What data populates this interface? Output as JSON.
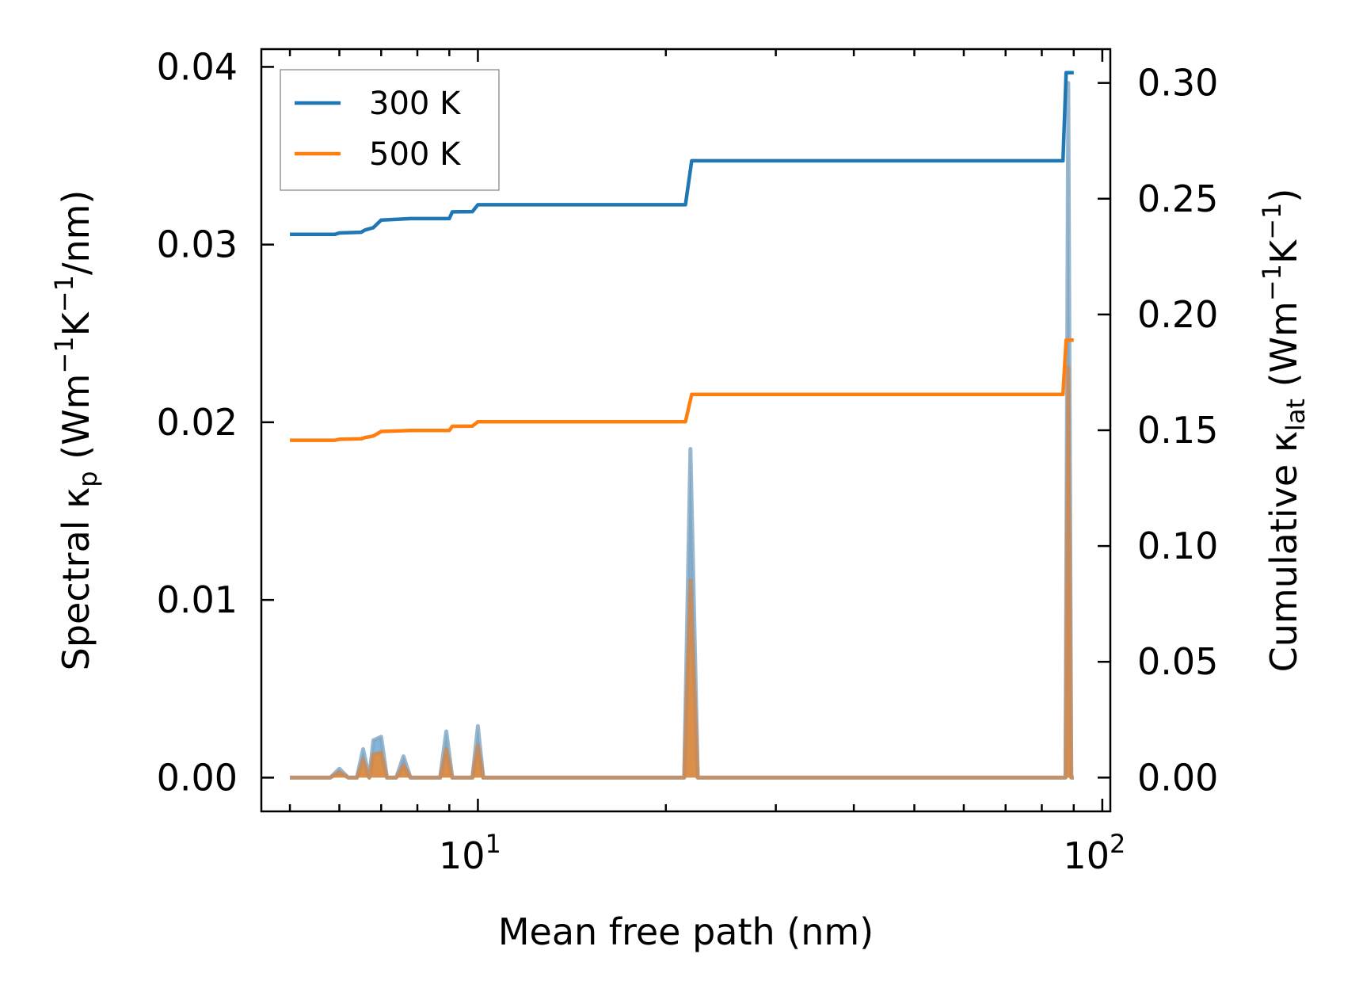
{
  "chart_data": {
    "type": "line",
    "xscale": "log",
    "xlim": [
      4.5,
      103
    ],
    "xlabel": "Mean free path (nm)",
    "ylabel_left_parts": [
      "Spectral κ",
      "p",
      " (Wm",
      "−1",
      "K",
      "−1",
      "/nm)"
    ],
    "ylabel_right_parts": [
      "Cumulative κ",
      "lat",
      " (Wm",
      "−1",
      "K",
      "−1",
      ")"
    ],
    "ylim_left": [
      -0.0019,
      0.041
    ],
    "ylim_right": [
      -0.0146,
      0.3146
    ],
    "xticks": [
      {
        "value": 10,
        "base": "10",
        "exp": "1"
      },
      {
        "value": 100,
        "base": "10",
        "exp": "2"
      }
    ],
    "yticks_left": [
      {
        "value": 0.0,
        "label": "0.00"
      },
      {
        "value": 0.01,
        "label": "0.01"
      },
      {
        "value": 0.02,
        "label": "0.02"
      },
      {
        "value": 0.03,
        "label": "0.03"
      },
      {
        "value": 0.04,
        "label": "0.04"
      }
    ],
    "yticks_right": [
      {
        "value": 0.0,
        "label": "0.00"
      },
      {
        "value": 0.05,
        "label": "0.05"
      },
      {
        "value": 0.1,
        "label": "0.10"
      },
      {
        "value": 0.15,
        "label": "0.15"
      },
      {
        "value": 0.2,
        "label": "0.20"
      },
      {
        "value": 0.25,
        "label": "0.25"
      },
      {
        "value": 0.3,
        "label": "0.30"
      }
    ],
    "legend_position": "top-left",
    "series": [
      {
        "name": "300 K",
        "color": "#1f77b4",
        "cumulative": [
          [
            5.0,
            0.2346
          ],
          [
            5.9,
            0.2346
          ],
          [
            6.0,
            0.2352
          ],
          [
            6.5,
            0.2355
          ],
          [
            6.6,
            0.2365
          ],
          [
            6.8,
            0.2375
          ],
          [
            7.0,
            0.2408
          ],
          [
            7.8,
            0.2414
          ],
          [
            9.0,
            0.2414
          ],
          [
            9.1,
            0.2443
          ],
          [
            9.8,
            0.2444
          ],
          [
            10.0,
            0.2474
          ],
          [
            21.5,
            0.2474
          ],
          [
            22.0,
            0.2664
          ],
          [
            86.5,
            0.2664
          ],
          [
            87.5,
            0.3044
          ],
          [
            90.0,
            0.3044
          ]
        ],
        "spectral": [
          [
            5.0,
            0.0
          ],
          [
            5.8,
            0.0
          ],
          [
            6.0,
            0.0005
          ],
          [
            6.2,
            0.0
          ],
          [
            6.4,
            0.0
          ],
          [
            6.55,
            0.0016
          ],
          [
            6.7,
            0.0
          ],
          [
            6.8,
            0.0021
          ],
          [
            7.0,
            0.0023
          ],
          [
            7.15,
            0.0
          ],
          [
            7.4,
            0.0
          ],
          [
            7.6,
            0.0012
          ],
          [
            7.8,
            0.0
          ],
          [
            8.7,
            0.0
          ],
          [
            8.9,
            0.0026
          ],
          [
            9.1,
            0.0
          ],
          [
            9.8,
            0.0
          ],
          [
            10.0,
            0.0029
          ],
          [
            10.2,
            0.0
          ],
          [
            21.4,
            0.0
          ],
          [
            21.9,
            0.0185
          ],
          [
            22.5,
            0.0
          ],
          [
            86.5,
            0.0
          ],
          [
            87.3,
            0.0
          ],
          [
            88.2,
            0.0391
          ],
          [
            89.2,
            0.0
          ],
          [
            90.0,
            0.0
          ]
        ]
      },
      {
        "name": "500 K",
        "color": "#ff7f0e",
        "cumulative": [
          [
            5.0,
            0.1457
          ],
          [
            5.9,
            0.1457
          ],
          [
            6.0,
            0.1461
          ],
          [
            6.5,
            0.1463
          ],
          [
            6.6,
            0.1469
          ],
          [
            6.8,
            0.1475
          ],
          [
            7.0,
            0.1495
          ],
          [
            7.8,
            0.1499
          ],
          [
            9.0,
            0.1499
          ],
          [
            9.1,
            0.1517
          ],
          [
            9.8,
            0.1518
          ],
          [
            10.0,
            0.1537
          ],
          [
            21.5,
            0.1537
          ],
          [
            22.0,
            0.1655
          ],
          [
            86.5,
            0.1655
          ],
          [
            87.5,
            0.1889
          ],
          [
            90.0,
            0.1889
          ]
        ],
        "spectral": [
          [
            5.0,
            0.0
          ],
          [
            5.8,
            0.0
          ],
          [
            6.0,
            0.0003
          ],
          [
            6.2,
            0.0
          ],
          [
            6.4,
            0.0
          ],
          [
            6.55,
            0.001
          ],
          [
            6.7,
            0.0
          ],
          [
            6.8,
            0.0013
          ],
          [
            7.0,
            0.0014
          ],
          [
            7.15,
            0.0
          ],
          [
            7.4,
            0.0
          ],
          [
            7.6,
            0.0007
          ],
          [
            7.8,
            0.0
          ],
          [
            8.7,
            0.0
          ],
          [
            8.9,
            0.0016
          ],
          [
            9.1,
            0.0
          ],
          [
            9.8,
            0.0
          ],
          [
            10.0,
            0.0018
          ],
          [
            10.2,
            0.0
          ],
          [
            21.4,
            0.0
          ],
          [
            21.9,
            0.0111
          ],
          [
            22.5,
            0.0
          ],
          [
            86.5,
            0.0
          ],
          [
            87.3,
            0.0
          ],
          [
            88.2,
            0.0231
          ],
          [
            89.2,
            0.0
          ],
          [
            90.0,
            0.0
          ]
        ]
      }
    ]
  }
}
